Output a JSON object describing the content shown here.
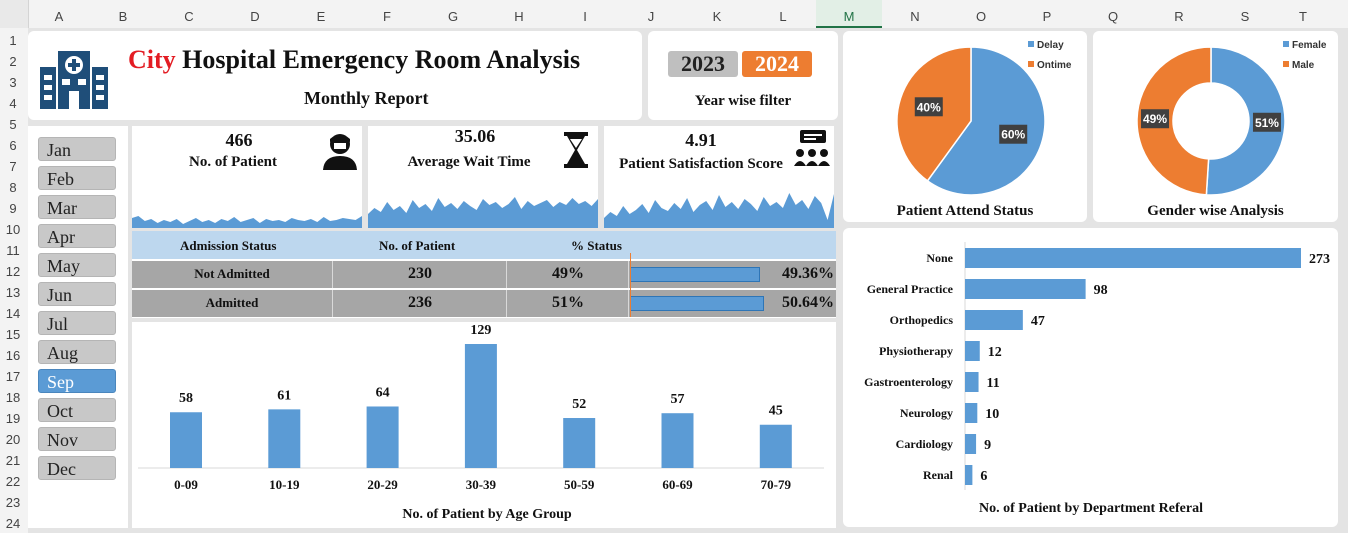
{
  "spreadsheet": {
    "columns": [
      "A",
      "B",
      "C",
      "D",
      "E",
      "F",
      "G",
      "H",
      "I",
      "J",
      "K",
      "L",
      "M",
      "N",
      "O",
      "P",
      "Q",
      "R",
      "S",
      "T"
    ],
    "active_column": "M",
    "rows": [
      "1",
      "2",
      "3",
      "4",
      "5",
      "6",
      "7",
      "8",
      "9",
      "10",
      "11",
      "12",
      "13",
      "14",
      "15",
      "16",
      "17",
      "18",
      "19",
      "20",
      "21",
      "22",
      "23",
      "24"
    ]
  },
  "header": {
    "title_city": "City",
    "title_rest": " Hospital Emergency Room Analysis",
    "subtitle": "Monthly Report",
    "title_city_color": "#e31c23"
  },
  "year_filter": {
    "years": [
      "2023",
      "2024"
    ],
    "selected": "2024",
    "label": "Year wise filter"
  },
  "months": [
    "Jan",
    "Feb",
    "Mar",
    "Apr",
    "May",
    "Jun",
    "Jul",
    "Aug",
    "Sep",
    "Oct",
    "Nov",
    "Dec"
  ],
  "selected_month": "Sep",
  "kpis": [
    {
      "value": "466",
      "label": "No. of Patient",
      "icon": "patient-icon"
    },
    {
      "value": "35.06",
      "label": "Average Wait Time",
      "icon": "hourglass-icon"
    },
    {
      "value": "4.91",
      "label": "Patient Satisfaction Score",
      "icon": "group-feedback-icon"
    }
  ],
  "admission": {
    "headers": [
      "Admission Status",
      "No. of Patient",
      "% Status"
    ],
    "rows": [
      {
        "status": "Not Admitted",
        "count": "230",
        "pct": "49%",
        "bar_pct": "49.36%",
        "bar_value": 49.36
      },
      {
        "status": "Admitted",
        "count": "236",
        "pct": "51%",
        "bar_pct": "50.64%",
        "bar_value": 50.64
      }
    ]
  },
  "attend_pie": {
    "title": "Patient Attend Status",
    "legend": [
      "Delay",
      "Ontime"
    ],
    "values": [
      60,
      40
    ],
    "labels": [
      "60%",
      "40%"
    ],
    "colors": [
      "#5b9bd5",
      "#ed7d31"
    ]
  },
  "gender_donut": {
    "title": "Gender wise Analysis",
    "legend": [
      "Female",
      "Male"
    ],
    "values": [
      51,
      49
    ],
    "labels": [
      "51%",
      "49%"
    ],
    "colors": [
      "#5b9bd5",
      "#ed7d31"
    ]
  },
  "chart_data": [
    {
      "type": "bar",
      "title": "No. of Patient by Age Group",
      "categories": [
        "0-09",
        "10-19",
        "20-29",
        "30-39",
        "50-59",
        "60-69",
        "70-79"
      ],
      "values": [
        58,
        61,
        64,
        129,
        52,
        57,
        45
      ],
      "color": "#5b9bd5"
    },
    {
      "type": "bar",
      "orientation": "horizontal",
      "title": "No. of Patient by Department  Referal",
      "categories": [
        "None",
        "General Practice",
        "Orthopedics",
        "Physiotherapy",
        "Gastroenterology",
        "Neurology",
        "Cardiology",
        "Renal"
      ],
      "values": [
        273,
        98,
        47,
        12,
        11,
        10,
        9,
        6
      ],
      "color": "#5b9bd5"
    }
  ],
  "colors": {
    "accent_blue": "#5b9bd5",
    "accent_orange": "#ed7d31",
    "year_selected": "#ed7d31",
    "year_unselected": "#bfbfbf",
    "table_header_bg": "#bdd7ee",
    "table_row_bg": "#a6a6a6"
  }
}
